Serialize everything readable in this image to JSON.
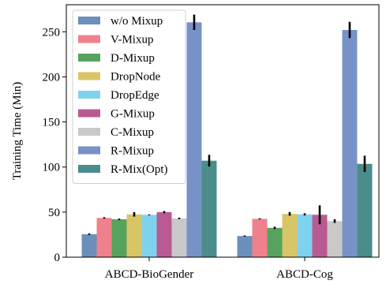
{
  "chart_data": {
    "type": "bar",
    "title": "",
    "xlabel": "",
    "ylabel": "Training Time (Min)",
    "ylim": [
      0,
      280
    ],
    "yticks": [
      0,
      50,
      100,
      150,
      200,
      250
    ],
    "grid": false,
    "legend_position": "top-left",
    "categories": [
      "ABCD-BioGender",
      "ABCD-Cog"
    ],
    "series": [
      {
        "name": "w/o Mixup",
        "color": "#6b8fba",
        "values": [
          25.5,
          23.5
        ],
        "errors": [
          0.8,
          0.6
        ]
      },
      {
        "name": "V-Mixup",
        "color": "#ef818d",
        "values": [
          43.5,
          42.5
        ],
        "errors": [
          0.8,
          0.6
        ]
      },
      {
        "name": "D-Mixup",
        "color": "#56a35d",
        "values": [
          42.0,
          32.5
        ],
        "errors": [
          0.8,
          1.3
        ]
      },
      {
        "name": "DropNode",
        "color": "#d8c567",
        "values": [
          47.5,
          48.0
        ],
        "errors": [
          2.5,
          2.0
        ]
      },
      {
        "name": "DropEdge",
        "color": "#7fd2ee",
        "values": [
          47.0,
          47.5
        ],
        "errors": [
          0.5,
          1.2
        ]
      },
      {
        "name": "G-Mixup",
        "color": "#b95a92",
        "values": [
          50.0,
          47.0
        ],
        "errors": [
          1.2,
          10.5
        ]
      },
      {
        "name": "C-Mixup",
        "color": "#c9c9c9",
        "values": [
          43.0,
          40.0
        ],
        "errors": [
          0.8,
          2.0
        ]
      },
      {
        "name": "R-Mixup",
        "color": "#7892c8",
        "values": [
          260.5,
          252.0
        ],
        "errors": [
          8.5,
          9.0
        ]
      },
      {
        "name": "R-Mix(Opt)",
        "color": "#4b8c8c",
        "values": [
          107.0,
          103.5
        ],
        "errors": [
          6.5,
          9.0
        ]
      }
    ]
  }
}
